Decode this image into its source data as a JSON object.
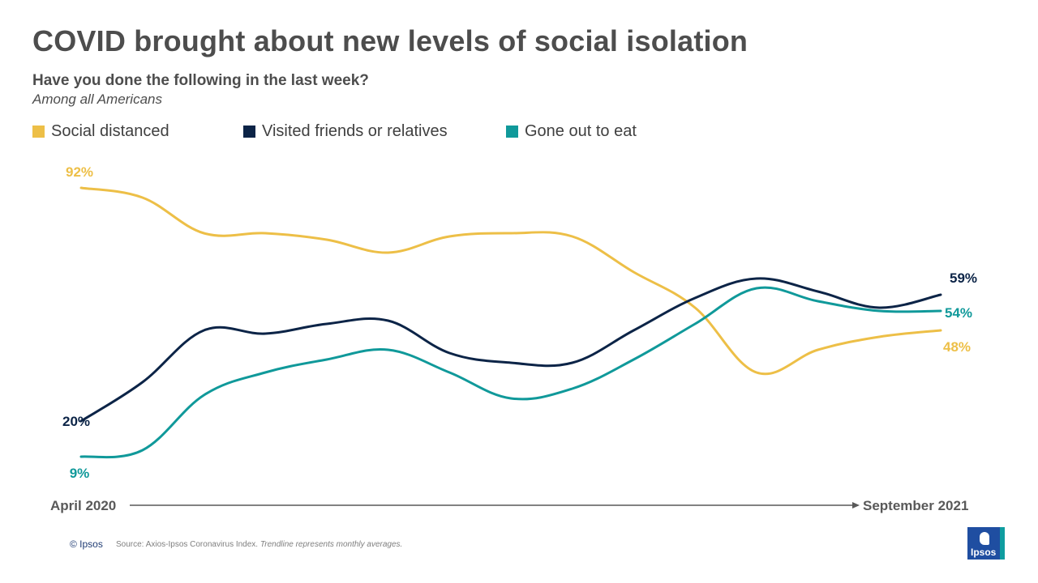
{
  "title": "COVID brought about new levels of social isolation",
  "subtitle": "Have you done the following  in the last week?",
  "subnote": "Among all Americans",
  "colors": {
    "social_distanced": "#edbf47",
    "visited": "#0c2447",
    "eat": "#10999a",
    "axis": "#595959"
  },
  "chart_data": {
    "type": "line",
    "title": "COVID brought about new levels of social isolation",
    "x_start_label": "April 2020",
    "x_end_label": "September 2021",
    "ylim": [
      0,
      100
    ],
    "series": [
      {
        "name": "Social distanced",
        "color": "#edbf47",
        "values": [
          92,
          89,
          78,
          78,
          76,
          72,
          77,
          78,
          77,
          66,
          55,
          35,
          42,
          46,
          48
        ],
        "start_label": "92%",
        "end_label": "48%"
      },
      {
        "name": "Visited friends or relatives",
        "color": "#0c2447",
        "values": [
          20,
          32,
          48,
          47,
          50,
          51,
          41,
          38,
          38,
          48,
          58,
          64,
          60,
          55,
          59
        ],
        "start_label": "20%",
        "end_label": "59%"
      },
      {
        "name": "Gone out to eat",
        "color": "#10999a",
        "values": [
          9,
          11,
          28,
          35,
          39,
          42,
          35,
          27,
          30,
          39,
          50,
          61,
          57,
          54,
          54
        ],
        "start_label": "9%",
        "end_label": "54%"
      }
    ]
  },
  "footer": {
    "copyright": "© Ipsos",
    "source": "Source: Axios-Ipsos Coronavirus Index.",
    "source_note": "Trendline represents monthly averages."
  },
  "logo": {
    "text": "Ipsos"
  }
}
